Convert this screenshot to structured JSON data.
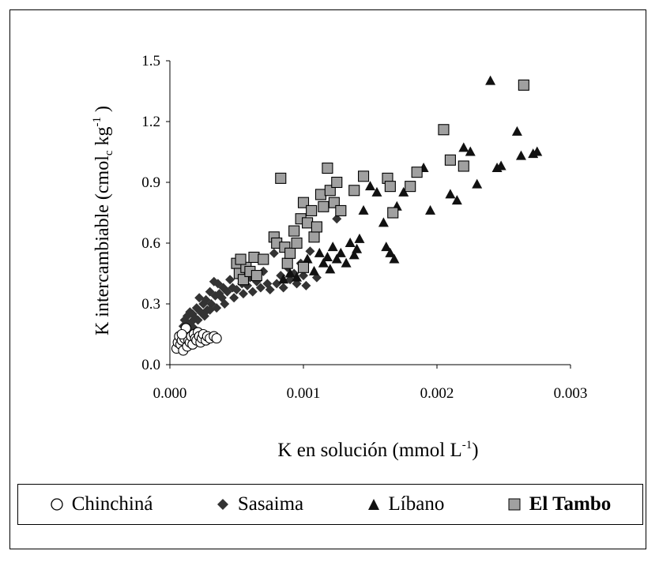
{
  "chart_data": {
    "type": "scatter",
    "title": "",
    "xlabel": "K  en solución (mmol L",
    "xlabel_sup": "-1",
    "xlabel_end": ")",
    "ylabel": "K intercambiable (cmol",
    "ylabel_sub": "c",
    "ylabel_mid": " kg",
    "ylabel_sup": "-1",
    "ylabel_end": " )",
    "xlim": [
      0.0,
      0.003
    ],
    "ylim": [
      0.0,
      1.5
    ],
    "x_ticks": [
      "0.000",
      "0.001",
      "0.002",
      "0.003"
    ],
    "y_ticks": [
      "0.0",
      "0.3",
      "0.6",
      "0.9",
      "1.2",
      "1.5"
    ],
    "grid": false,
    "legend_position": "bottom",
    "series": [
      {
        "name": "Chinchiná",
        "marker": "circle-open",
        "color": "#ffffff",
        "points": [
          [
            5e-05,
            0.08
          ],
          [
            6e-05,
            0.11
          ],
          [
            7e-05,
            0.14
          ],
          [
            8e-05,
            0.1
          ],
          [
            9e-05,
            0.12
          ],
          [
            0.0001,
            0.07
          ],
          [
            0.00011,
            0.13
          ],
          [
            0.00012,
            0.16
          ],
          [
            0.00013,
            0.09
          ],
          [
            0.00014,
            0.12
          ],
          [
            0.00015,
            0.11
          ],
          [
            0.00016,
            0.14
          ],
          [
            0.00017,
            0.1
          ],
          [
            0.00018,
            0.15
          ],
          [
            0.00019,
            0.13
          ],
          [
            0.0002,
            0.12
          ],
          [
            0.00021,
            0.16
          ],
          [
            0.00022,
            0.14
          ],
          [
            0.00023,
            0.11
          ],
          [
            0.00024,
            0.13
          ],
          [
            0.00025,
            0.15
          ],
          [
            0.00027,
            0.12
          ],
          [
            0.00028,
            0.14
          ],
          [
            0.0003,
            0.13
          ],
          [
            0.00033,
            0.14
          ],
          [
            0.00035,
            0.13
          ],
          [
            0.00012,
            0.18
          ],
          [
            9e-05,
            0.15
          ]
        ]
      },
      {
        "name": "Sasaima",
        "marker": "diamond",
        "color": "#333333",
        "points": [
          [
            8e-05,
            0.15
          ],
          [
            0.0001,
            0.19
          ],
          [
            0.00011,
            0.22
          ],
          [
            0.00012,
            0.17
          ],
          [
            0.00013,
            0.24
          ],
          [
            0.00014,
            0.2
          ],
          [
            0.00015,
            0.26
          ],
          [
            0.00016,
            0.21
          ],
          [
            0.00017,
            0.25
          ],
          [
            0.00018,
            0.18
          ],
          [
            0.00019,
            0.23
          ],
          [
            0.0002,
            0.28
          ],
          [
            0.00021,
            0.22
          ],
          [
            0.00022,
            0.33
          ],
          [
            0.00023,
            0.26
          ],
          [
            0.00025,
            0.3
          ],
          [
            0.00026,
            0.24
          ],
          [
            0.00027,
            0.32
          ],
          [
            0.00028,
            0.27
          ],
          [
            0.0003,
            0.36
          ],
          [
            0.00031,
            0.3
          ],
          [
            0.00033,
            0.41
          ],
          [
            0.00034,
            0.34
          ],
          [
            0.00035,
            0.28
          ],
          [
            0.00036,
            0.4
          ],
          [
            0.00037,
            0.35
          ],
          [
            0.00039,
            0.33
          ],
          [
            0.0004,
            0.38
          ],
          [
            0.00041,
            0.3
          ],
          [
            0.00043,
            0.36
          ],
          [
            0.00045,
            0.42
          ],
          [
            0.00047,
            0.38
          ],
          [
            0.00048,
            0.33
          ],
          [
            0.0005,
            0.37
          ],
          [
            0.00052,
            0.44
          ],
          [
            0.00054,
            0.4
          ],
          [
            0.00055,
            0.35
          ],
          [
            0.00058,
            0.39
          ],
          [
            0.0006,
            0.43
          ],
          [
            0.00062,
            0.36
          ],
          [
            0.00065,
            0.41
          ],
          [
            0.00068,
            0.38
          ],
          [
            0.0007,
            0.46
          ],
          [
            0.00073,
            0.4
          ],
          [
            0.00075,
            0.37
          ],
          [
            0.00078,
            0.55
          ],
          [
            0.0008,
            0.4
          ],
          [
            0.00083,
            0.44
          ],
          [
            0.00085,
            0.38
          ],
          [
            0.00088,
            0.48
          ],
          [
            0.0009,
            0.42
          ],
          [
            0.00093,
            0.45
          ],
          [
            0.00095,
            0.4
          ],
          [
            0.00098,
            0.5
          ],
          [
            0.001,
            0.44
          ],
          [
            0.00102,
            0.39
          ],
          [
            0.00105,
            0.56
          ],
          [
            0.0011,
            0.43
          ],
          [
            0.00125,
            0.72
          ],
          [
            0.0003,
            0.27
          ]
        ]
      },
      {
        "name": "Líbano",
        "marker": "triangle",
        "color": "#111111",
        "points": [
          [
            0.00095,
            0.43
          ],
          [
            0.001,
            0.48
          ],
          [
            0.00103,
            0.52
          ],
          [
            0.00108,
            0.46
          ],
          [
            0.00112,
            0.55
          ],
          [
            0.00115,
            0.5
          ],
          [
            0.00118,
            0.53
          ],
          [
            0.0012,
            0.47
          ],
          [
            0.00122,
            0.58
          ],
          [
            0.00125,
            0.52
          ],
          [
            0.00128,
            0.55
          ],
          [
            0.00132,
            0.5
          ],
          [
            0.00135,
            0.6
          ],
          [
            0.00138,
            0.54
          ],
          [
            0.0014,
            0.57
          ],
          [
            0.00142,
            0.62
          ],
          [
            0.00145,
            0.76
          ],
          [
            0.0015,
            0.88
          ],
          [
            0.00155,
            0.85
          ],
          [
            0.0016,
            0.7
          ],
          [
            0.00162,
            0.58
          ],
          [
            0.00165,
            0.55
          ],
          [
            0.00168,
            0.52
          ],
          [
            0.0017,
            0.78
          ],
          [
            0.00175,
            0.85
          ],
          [
            0.0018,
            0.88
          ],
          [
            0.0019,
            0.97
          ],
          [
            0.00195,
            0.76
          ],
          [
            0.0021,
            0.84
          ],
          [
            0.00215,
            0.81
          ],
          [
            0.0022,
            1.07
          ],
          [
            0.00225,
            1.05
          ],
          [
            0.0023,
            0.89
          ],
          [
            0.0024,
            1.4
          ],
          [
            0.00245,
            0.97
          ],
          [
            0.00248,
            0.98
          ],
          [
            0.0026,
            1.15
          ],
          [
            0.00263,
            1.03
          ],
          [
            0.00272,
            1.04
          ],
          [
            0.00275,
            1.05
          ],
          [
            0.00085,
            0.42
          ],
          [
            0.0009,
            0.45
          ]
        ]
      },
      {
        "name": "El Tambo",
        "marker": "square",
        "color": "#a0a0a0",
        "points": [
          [
            0.0005,
            0.5
          ],
          [
            0.00052,
            0.45
          ],
          [
            0.00055,
            0.42
          ],
          [
            0.00057,
            0.48
          ],
          [
            0.0006,
            0.46
          ],
          [
            0.00063,
            0.53
          ],
          [
            0.00065,
            0.44
          ],
          [
            0.00078,
            0.63
          ],
          [
            0.0008,
            0.6
          ],
          [
            0.00083,
            0.92
          ],
          [
            0.00086,
            0.58
          ],
          [
            0.00088,
            0.5
          ],
          [
            0.0009,
            0.55
          ],
          [
            0.00093,
            0.66
          ],
          [
            0.00095,
            0.6
          ],
          [
            0.00098,
            0.72
          ],
          [
            0.001,
            0.8
          ],
          [
            0.00103,
            0.7
          ],
          [
            0.00106,
            0.76
          ],
          [
            0.00108,
            0.63
          ],
          [
            0.0011,
            0.68
          ],
          [
            0.00113,
            0.84
          ],
          [
            0.00115,
            0.78
          ],
          [
            0.00118,
            0.97
          ],
          [
            0.0012,
            0.86
          ],
          [
            0.00123,
            0.8
          ],
          [
            0.00125,
            0.9
          ],
          [
            0.00128,
            0.76
          ],
          [
            0.00138,
            0.86
          ],
          [
            0.00145,
            0.93
          ],
          [
            0.00163,
            0.92
          ],
          [
            0.00165,
            0.88
          ],
          [
            0.00167,
            0.75
          ],
          [
            0.0018,
            0.88
          ],
          [
            0.00185,
            0.95
          ],
          [
            0.00205,
            1.16
          ],
          [
            0.0021,
            1.01
          ],
          [
            0.0022,
            0.98
          ],
          [
            0.00265,
            1.38
          ],
          [
            0.00053,
            0.52
          ],
          [
            0.0007,
            0.52
          ],
          [
            0.001,
            0.48
          ]
        ]
      }
    ]
  }
}
